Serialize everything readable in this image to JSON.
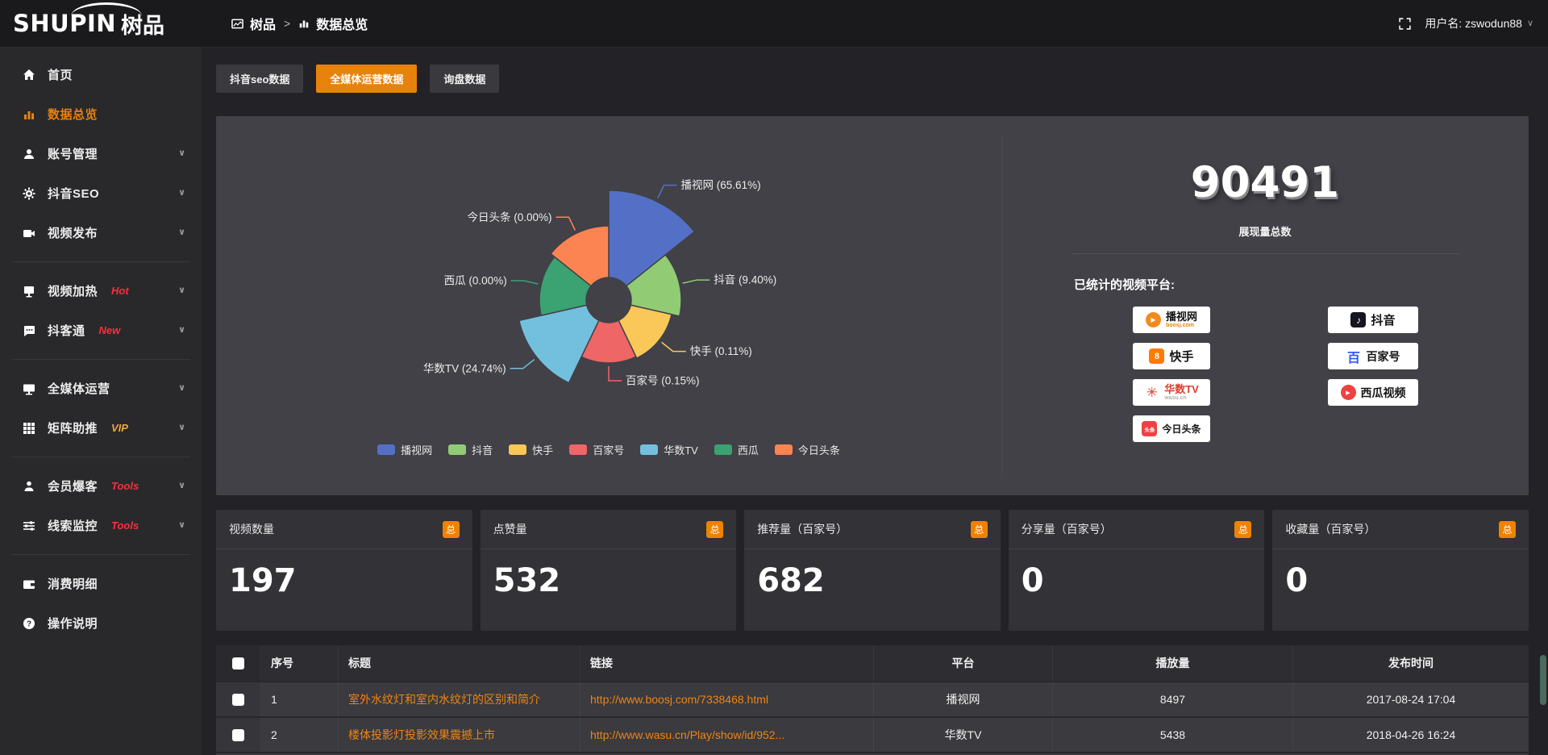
{
  "header": {
    "logo_primary": "SHUPIN",
    "logo_secondary": "树品",
    "breadcrumb_root": "树品",
    "breadcrumb_separator": ">",
    "breadcrumb_current": "数据总览",
    "username": "用户名: zswodun88"
  },
  "colors": {
    "accent_orange": "#e8820c",
    "link_orange": "#ef8412",
    "tag_red": "#f5313d",
    "tag_gold": "#f0a63c",
    "badge_orange": "#ef8200"
  },
  "sidebar": {
    "items": [
      {
        "label": "首页",
        "icon": "home-icon",
        "tag": ""
      },
      {
        "label": "数据总览",
        "icon": "bar-chart-icon",
        "tag": "",
        "active": true
      },
      {
        "label": "账号管理",
        "icon": "user-icon",
        "tag": ""
      },
      {
        "label": "抖音SEO",
        "icon": "gear-icon",
        "tag": ""
      },
      {
        "label": "视频发布",
        "icon": "video-icon",
        "tag": ""
      },
      {
        "label": "视频加热",
        "icon": "screen-icon",
        "tag": "Hot"
      },
      {
        "label": "抖客通",
        "icon": "chat-icon",
        "tag": "New"
      },
      {
        "label": "全媒体运营",
        "icon": "monitor-icon",
        "tag": ""
      },
      {
        "label": "矩阵助推",
        "icon": "grid-icon",
        "tag": "VIP"
      },
      {
        "label": "会员爆客",
        "icon": "member-icon",
        "tag": "Tools"
      },
      {
        "label": "线索监控",
        "icon": "sliders-icon",
        "tag": "Tools"
      },
      {
        "label": "消费明细",
        "icon": "wallet-icon",
        "tag": ""
      },
      {
        "label": "操作说明",
        "icon": "question-icon",
        "tag": ""
      }
    ]
  },
  "tabs": [
    {
      "label": "抖音seo数据",
      "active": false
    },
    {
      "label": "全媒体运营数据",
      "active": true
    },
    {
      "label": "询盘数据",
      "active": false
    }
  ],
  "chart_data": {
    "type": "pie",
    "variant": "nightingale-rose",
    "legend_position": "bottom",
    "inner_radius_px": 28,
    "slices": [
      {
        "name": "播视网",
        "percent": 65.61,
        "label": "播视网 (65.61%)",
        "color": "#5470c6",
        "outer_radius_px": 136
      },
      {
        "name": "抖音",
        "percent": 9.4,
        "label": "抖音 (9.40%)",
        "color": "#91cc75",
        "outer_radius_px": 90
      },
      {
        "name": "快手",
        "percent": 0.11,
        "label": "快手 (0.11%)",
        "color": "#fac858",
        "outer_radius_px": 80
      },
      {
        "name": "百家号",
        "percent": 0.15,
        "label": "百家号 (0.15%)",
        "color": "#ee6666",
        "outer_radius_px": 78
      },
      {
        "name": "华数TV",
        "percent": 24.74,
        "label": "华数TV (24.74%)",
        "color": "#73c0de",
        "outer_radius_px": 114
      },
      {
        "name": "西瓜",
        "percent": 0.0,
        "label": "西瓜 (0.00%)",
        "color": "#3ba272",
        "outer_radius_px": 86
      },
      {
        "name": "今日头条",
        "percent": 0.0,
        "label": "今日头条 (0.00%)",
        "color": "#fc8452",
        "outer_radius_px": 92
      }
    ]
  },
  "summary": {
    "total_value": "90491",
    "total_caption": "展现量总数",
    "platforms_title": "已统计的视频平台:",
    "badges_left": [
      {
        "name": "播视网",
        "sub": "boosj.com",
        "icon": "boosj-logo",
        "glyph": "▶"
      },
      {
        "name": "快手",
        "sub": "",
        "icon": "kuaishou-logo",
        "glyph": "8"
      },
      {
        "name": "华数TV",
        "sub": "wasu.cn",
        "icon": "wasu-logo",
        "glyph": "✳"
      },
      {
        "name": "今日头条",
        "sub": "",
        "icon": "toutiao-logo",
        "glyph": "头条"
      }
    ],
    "badges_right": [
      {
        "name": "抖音",
        "sub": "",
        "icon": "douyin-logo",
        "glyph": "♪"
      },
      {
        "name": "百家号",
        "sub": "",
        "icon": "baijiahao-logo",
        "glyph": "百"
      },
      {
        "name": "西瓜视频",
        "sub": "",
        "icon": "xigua-logo",
        "glyph": "▶"
      }
    ]
  },
  "stat_cards": [
    {
      "label": "视频数量",
      "badge": "总",
      "value": "197"
    },
    {
      "label": "点赞量",
      "badge": "总",
      "value": "532"
    },
    {
      "label": "推荐量（百家号）",
      "badge": "总",
      "value": "682"
    },
    {
      "label": "分享量（百家号）",
      "badge": "总",
      "value": "0"
    },
    {
      "label": "收藏量（百家号）",
      "badge": "总",
      "value": "0"
    }
  ],
  "table": {
    "headers": [
      "序号",
      "标题",
      "链接",
      "平台",
      "播放量",
      "发布时间"
    ],
    "rows": [
      {
        "index": "1",
        "title": "室外水纹灯和室内水纹灯的区别和简介",
        "link": "http://www.boosj.com/7338468.html",
        "platform": "播视网",
        "views": "8497",
        "published": "2017-08-24 17:04"
      },
      {
        "index": "2",
        "title": "楼体投影灯投影效果震撼上市",
        "link": "http://www.wasu.cn/Play/show/id/952...",
        "platform": "华数TV",
        "views": "5438",
        "published": "2018-04-26 16:24"
      }
    ]
  }
}
